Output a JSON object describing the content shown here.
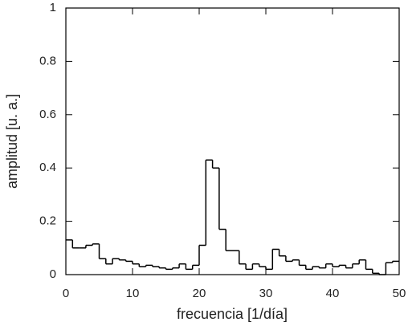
{
  "chart_data": {
    "type": "histogram",
    "xlabel": "frecuencia [1/día]",
    "ylabel": "amplitud [u. a.]",
    "bins": [
      0,
      1,
      2,
      3,
      4,
      5,
      6,
      7,
      8,
      9,
      10,
      11,
      12,
      13,
      14,
      15,
      16,
      17,
      18,
      19,
      20,
      21,
      22,
      23,
      24,
      25,
      26,
      27,
      28,
      29,
      30,
      31,
      32,
      33,
      34,
      35,
      36,
      37,
      38,
      39,
      40,
      41,
      42,
      43,
      44,
      45,
      46,
      47,
      48,
      49,
      50
    ],
    "values": [
      0.13,
      0.1,
      0.1,
      0.11,
      0.115,
      0.06,
      0.04,
      0.06,
      0.055,
      0.05,
      0.04,
      0.03,
      0.035,
      0.03,
      0.025,
      0.02,
      0.025,
      0.04,
      0.02,
      0.035,
      0.11,
      0.43,
      0.4,
      0.17,
      0.09,
      0.09,
      0.04,
      0.02,
      0.04,
      0.03,
      0.02,
      0.095,
      0.07,
      0.05,
      0.055,
      0.035,
      0.02,
      0.03,
      0.025,
      0.04,
      0.03,
      0.035,
      0.025,
      0.04,
      0.055,
      0.02,
      0.005,
      0.0,
      0.045,
      0.05
    ],
    "color": "#000000",
    "xlim": [
      0,
      50
    ],
    "xticks": [
      0,
      10,
      20,
      30,
      40,
      50
    ],
    "ylim": [
      0,
      1
    ],
    "yticks": [
      0,
      0.2,
      0.4,
      0.6,
      0.8,
      1
    ]
  }
}
